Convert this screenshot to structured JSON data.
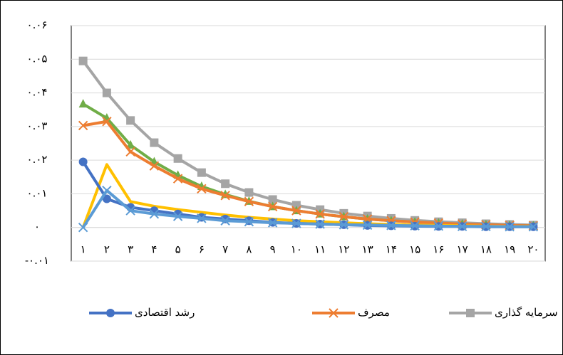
{
  "chart_data": {
    "type": "line",
    "categories": [
      "۱",
      "۲",
      "۳",
      "۴",
      "۵",
      "۶",
      "۷",
      "۸",
      "۹",
      "۱۰",
      "۱۱",
      "۱۲",
      "۱۳",
      "۱۴",
      "۱۵",
      "۱۶",
      "۱۷",
      "۱۸",
      "۱۹",
      "۲۰"
    ],
    "ylim": [
      -0.01,
      0.06
    ],
    "yticks": [
      {
        "value": -0.01,
        "label": "-۰.۰۱"
      },
      {
        "value": 0,
        "label": "۰"
      },
      {
        "value": 0.01,
        "label": "۰.۰۱"
      },
      {
        "value": 0.02,
        "label": "۰.۰۲"
      },
      {
        "value": 0.03,
        "label": "۰.۰۳"
      },
      {
        "value": 0.04,
        "label": "۰.۰۴"
      },
      {
        "value": 0.05,
        "label": "۰.۰۵"
      },
      {
        "value": 0.06,
        "label": "۰.۰۶"
      }
    ],
    "grid": true,
    "series": [
      {
        "name": "سرمایه گذاری",
        "color": "#a5a5a5",
        "marker": "square",
        "values": [
          0.0495,
          0.04,
          0.0318,
          0.0252,
          0.0205,
          0.0163,
          0.013,
          0.0104,
          0.0083,
          0.0066,
          0.0053,
          0.0042,
          0.0034,
          0.0027,
          0.0021,
          0.0017,
          0.0014,
          0.0011,
          0.0009,
          0.0007
        ]
      },
      {
        "color": "#70ad47",
        "marker": "triangle",
        "values": [
          0.0367,
          0.0325,
          0.0245,
          0.0195,
          0.0155,
          0.0122,
          0.0098,
          0.0078,
          0.0062,
          0.005,
          0.004,
          0.0032,
          0.0025,
          0.002,
          0.0016,
          0.0013,
          0.001,
          0.0008,
          0.0006,
          0.0005
        ]
      },
      {
        "name": "مصرف",
        "color": "#ed7d31",
        "marker": "x",
        "values": [
          0.0303,
          0.0315,
          0.0225,
          0.0183,
          0.0145,
          0.0115,
          0.0095,
          0.0077,
          0.0062,
          0.005,
          0.004,
          0.0032,
          0.0025,
          0.002,
          0.0016,
          0.0013,
          0.001,
          0.0008,
          0.0006,
          0.0005
        ]
      },
      {
        "color": "#ffc000",
        "marker": "none",
        "values": [
          0,
          0.0187,
          0.0077,
          0.0063,
          0.0053,
          0.0045,
          0.0037,
          0.003,
          0.0025,
          0.002,
          0.0017,
          0.0014,
          0.0011,
          0.0009,
          0.0007,
          0.0006,
          0.0005,
          0.0004,
          0.0003,
          0.0003
        ]
      },
      {
        "name": "رشد اقتصادی",
        "color": "#4472c4",
        "marker": "circle",
        "values": [
          0.0195,
          0.0085,
          0.006,
          0.005,
          0.004,
          0.003,
          0.0025,
          0.002,
          0.0015,
          0.0012,
          0.001,
          0.0008,
          0.0006,
          0.0005,
          0.0004,
          0.0003,
          0.0003,
          0.0002,
          0.0002,
          0.0002
        ]
      },
      {
        "color": "#5b9bd5",
        "marker": "x",
        "values": [
          0,
          0.011,
          0.005,
          0.004,
          0.0033,
          0.0027,
          0.002,
          0.0017,
          0.0014,
          0.0012,
          0.001,
          0.0008,
          0.0007,
          0.0006,
          0.0005,
          0.0004,
          0.0003,
          0.0003,
          0.0002,
          0.0002
        ]
      }
    ]
  }
}
